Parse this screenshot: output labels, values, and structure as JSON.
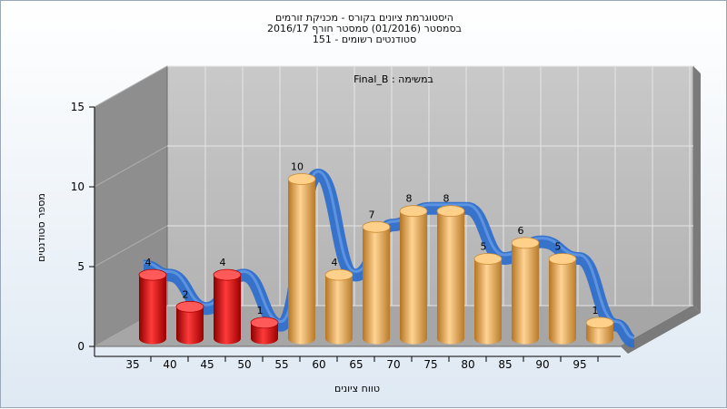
{
  "chart_data": {
    "type": "bar",
    "title_lines": [
      "היסטוגרמת ציונים בקורס - מכניקת זורמים",
      "בסמסטר  (01/2016)  סמסטר חורף 2016/17",
      "סטודנטים רשומים - 151"
    ],
    "annotation": "Final_B : במשימה",
    "xlabel": "טווח ציונים",
    "ylabel": "מספר סטודנטים",
    "categories": [
      "35",
      "40",
      "45",
      "50",
      "55",
      "60",
      "65",
      "70",
      "75",
      "80",
      "85",
      "90",
      "95"
    ],
    "values": [
      4,
      2,
      4,
      1,
      10,
      4,
      7,
      8,
      8,
      5,
      6,
      5,
      1
    ],
    "ylim": [
      0,
      15
    ],
    "yticks": [
      0,
      5,
      10,
      15
    ],
    "xticks": [
      "35",
      "40",
      "45",
      "50",
      "55",
      "60",
      "65",
      "70",
      "75",
      "80",
      "85",
      "90",
      "95"
    ],
    "fail_threshold": 55,
    "grid": true,
    "colors": {
      "fail_bar": "#e01818",
      "pass_bar": "#f0b05a",
      "curve": "#2e6fcc",
      "back_wall": "#c0c0c0",
      "side_wall": "#8e8e8e",
      "floor": "#a8a8a8"
    }
  }
}
